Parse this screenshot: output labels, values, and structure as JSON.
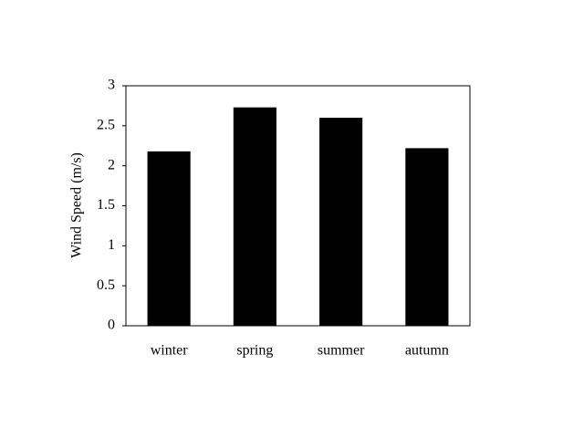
{
  "chart_data": {
    "type": "bar",
    "y_label": "Wind Speed (m/s)",
    "categories": [
      "winter",
      "spring",
      "summer",
      "autumn"
    ],
    "values": [
      2.18,
      2.73,
      2.6,
      2.22
    ],
    "color": "#000000",
    "ylim": [
      0,
      3
    ],
    "yticks": [
      0,
      0.5,
      1,
      1.5,
      2,
      2.5,
      3
    ],
    "grid": false
  }
}
